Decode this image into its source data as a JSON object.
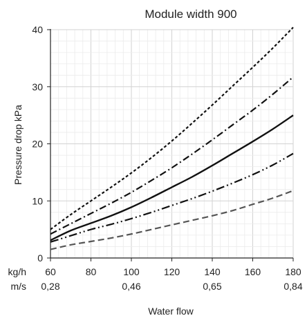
{
  "chart_data": {
    "type": "line",
    "title": "Module width 900",
    "xlabel": "Water flow",
    "ylabel": "Pressure drop kPa",
    "x_unit_label": "kg/h",
    "x_secondary_unit_label": "m/s",
    "xlim": [
      60,
      180
    ],
    "ylim": [
      0,
      40
    ],
    "x_ticks": [
      60,
      80,
      100,
      120,
      140,
      160,
      180
    ],
    "y_ticks": [
      0,
      10,
      20,
      30,
      40
    ],
    "x_secondary_ticks": [
      {
        "x": 60,
        "label": "0,28"
      },
      {
        "x": 100,
        "label": "0,46"
      },
      {
        "x": 140,
        "label": "0,65"
      },
      {
        "x": 180,
        "label": "0,84"
      }
    ],
    "grid": true,
    "x": [
      60,
      70,
      80,
      90,
      100,
      110,
      120,
      130,
      140,
      150,
      160,
      170,
      180
    ],
    "series": [
      {
        "style": "dotted",
        "color": "#111111",
        "values": [
          5.0,
          7.6,
          10.0,
          12.4,
          14.9,
          17.6,
          20.5,
          23.6,
          26.8,
          30.1,
          33.4,
          36.8,
          40.4
        ]
      },
      {
        "style": "dashdot",
        "color": "#111111",
        "values": [
          4.2,
          6.0,
          7.8,
          9.6,
          11.5,
          13.6,
          15.8,
          18.2,
          20.7,
          23.3,
          25.9,
          28.7,
          31.7
        ]
      },
      {
        "style": "solid",
        "color": "#111111",
        "values": [
          3.1,
          4.8,
          6.1,
          7.4,
          8.9,
          10.6,
          12.4,
          14.2,
          16.2,
          18.3,
          20.4,
          22.6,
          25.0
        ]
      },
      {
        "style": "dashdotdot",
        "color": "#111111",
        "values": [
          2.8,
          3.9,
          5.0,
          5.9,
          6.9,
          8.0,
          9.2,
          10.4,
          11.7,
          13.1,
          14.6,
          16.3,
          18.3
        ]
      },
      {
        "style": "dashed",
        "color": "#555555",
        "values": [
          1.5,
          2.3,
          2.9,
          3.5,
          4.2,
          5.0,
          5.8,
          6.6,
          7.4,
          8.3,
          9.4,
          10.5,
          11.8
        ]
      }
    ]
  }
}
